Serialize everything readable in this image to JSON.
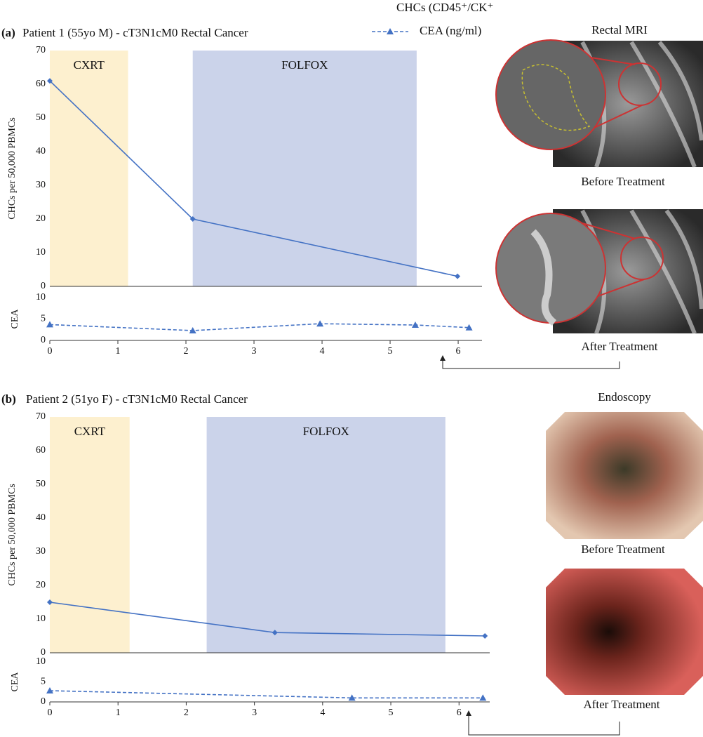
{
  "panels": [
    {
      "label": "(a)",
      "title": "Patient 1  (55yo M) - cT3N1cM0 Rectal Cancer",
      "image_title": "Rectal MRI",
      "captions": [
        "Before Treatment",
        "After Treatment"
      ]
    },
    {
      "label": "(b)",
      "title": "Patient 2  (51yo F) - cT3N1cM0 Rectal Cancer",
      "image_title": "Endoscopy",
      "captions": [
        "Before Treatment",
        "After Treatment"
      ]
    }
  ],
  "chart_data": [
    {
      "type": "line",
      "ylabel": "CHCs per 50,000 PBMCs",
      "xlim": [
        0,
        6.35
      ],
      "ylim": [
        0,
        70
      ],
      "yticks": [
        0,
        10,
        20,
        30,
        40,
        50,
        60,
        70
      ],
      "regions": [
        {
          "label": "CXRT",
          "x": [
            0,
            1.15
          ],
          "color": "#fdf0cf"
        },
        {
          "label": "FOLFOX",
          "x": [
            2.1,
            5.39
          ],
          "color": "#cbd3ea"
        }
      ],
      "x": [
        0,
        2.1,
        5.99
      ],
      "series": [
        {
          "name": "CHCs (CD45⁺/CK⁺",
          "color": "#4472c4",
          "line_style": "solid",
          "marker": "diamond",
          "values": [
            61,
            20,
            3
          ]
        }
      ]
    },
    {
      "type": "line",
      "ylabel": "CEA",
      "xlim": [
        0,
        6.35
      ],
      "ylim": [
        0,
        10
      ],
      "yticks": [
        0,
        5,
        10
      ],
      "xticks": [
        0,
        1,
        2,
        3,
        4,
        5,
        6
      ],
      "x": [
        0,
        2.1,
        3.97,
        5.37,
        6.16
      ],
      "series": [
        {
          "name": "CEA (ng/ml)",
          "color": "#4472c4",
          "line_style": "dashed",
          "marker": "triangle",
          "values": [
            3.7,
            2.3,
            3.9,
            3.6,
            3.0
          ]
        }
      ]
    },
    {
      "type": "line",
      "ylabel": "CHCs per 50,000 PBMCs",
      "xlim": [
        0,
        6.45
      ],
      "ylim": [
        0,
        70
      ],
      "yticks": [
        0,
        10,
        20,
        30,
        40,
        50,
        60,
        70
      ],
      "regions": [
        {
          "label": "CXRT",
          "x": [
            0,
            1.17
          ],
          "color": "#fdf0cf"
        },
        {
          "label": "FOLFOX",
          "x": [
            2.3,
            5.8
          ],
          "color": "#cbd3ea"
        }
      ],
      "x": [
        0,
        3.3,
        6.38
      ],
      "series": [
        {
          "color": "#4472c4",
          "line_style": "solid",
          "marker": "diamond",
          "values": [
            15,
            6,
            5
          ]
        }
      ]
    },
    {
      "type": "line",
      "ylabel": "CEA",
      "xlim": [
        0,
        6.45
      ],
      "ylim": [
        0,
        10
      ],
      "yticks": [
        0,
        5,
        10
      ],
      "xticks": [
        0,
        1,
        2,
        3,
        4,
        5,
        6
      ],
      "x": [
        0,
        4.43,
        6.35
      ],
      "series": [
        {
          "color": "#4472c4",
          "line_style": "dashed",
          "marker": "triangle",
          "values": [
            2.8,
            1.0,
            1.0
          ]
        }
      ]
    }
  ]
}
